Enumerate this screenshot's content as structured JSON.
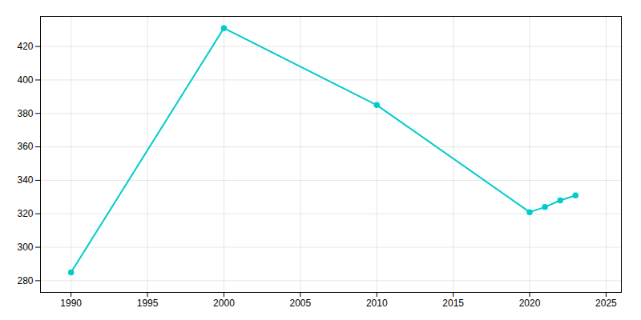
{
  "chart_data": {
    "type": "line",
    "x": [
      1990,
      2000,
      2010,
      2020,
      2021,
      2022,
      2023
    ],
    "values": [
      285,
      431,
      385,
      321,
      324,
      328,
      331
    ],
    "color": "#00CCCC",
    "marker": "circle",
    "xlim": [
      1988,
      2026
    ],
    "ylim": [
      273,
      438
    ],
    "xticks": [
      1990,
      1995,
      2000,
      2005,
      2010,
      2015,
      2020,
      2025
    ],
    "yticks": [
      280,
      300,
      320,
      340,
      360,
      380,
      400,
      420
    ],
    "grid": true
  }
}
